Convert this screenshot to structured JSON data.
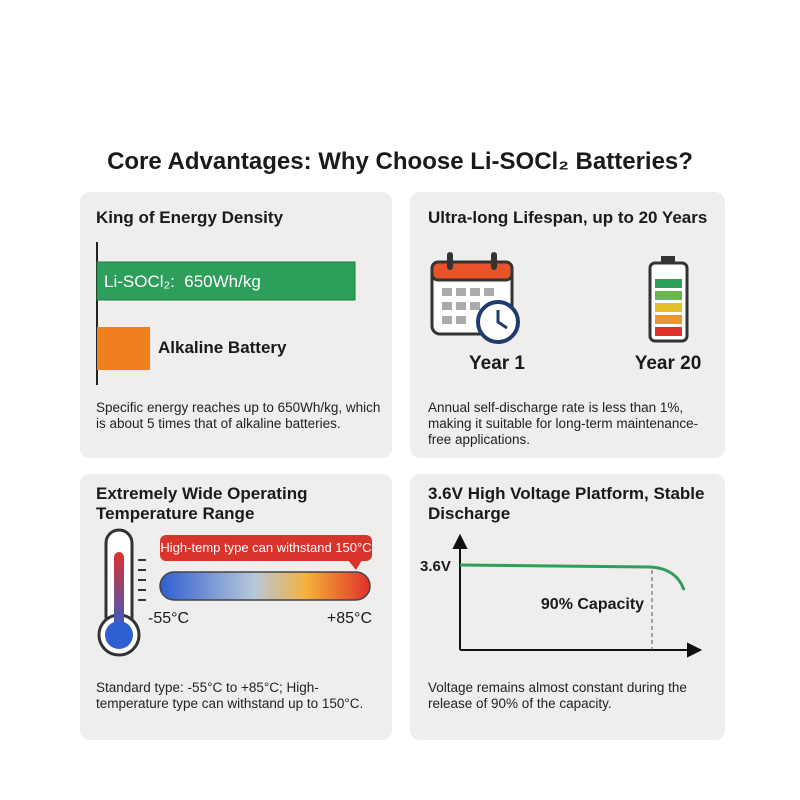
{
  "title": "Core Advantages: Why Choose Li-SOCl₂ Batteries?",
  "cards": [
    {
      "title": "King of Energy Density",
      "bar_labels": [
        "Li-SOCl₂:  650Wh/kg",
        "Alkaline Battery"
      ],
      "text": "Specific energy reaches up to 650Wh/kg, which is about 5 times that of alkaline batteries."
    },
    {
      "title": "Ultra-long Lifespan, up to 20 Years",
      "labels": [
        "Year 1",
        "Year 20"
      ],
      "text": "Annual self-discharge rate is less than 1%, making it suitable for long-term maintenance-free applications."
    },
    {
      "title": "Extremely Wide Operating Temperature Range",
      "callout": "High-temp type can withstand 150°C",
      "range": [
        "-55°C",
        "+85°C"
      ],
      "text": "Standard type: -55°C to +85°C; High-temperature type can withstand up to 150°C."
    },
    {
      "title": "3.6V High Voltage Platform, Stable Discharge",
      "voltage": "3.6V",
      "capacity": "90% Capacity",
      "text": "Voltage remains almost constant during the release of 90% of the capacity."
    }
  ]
}
